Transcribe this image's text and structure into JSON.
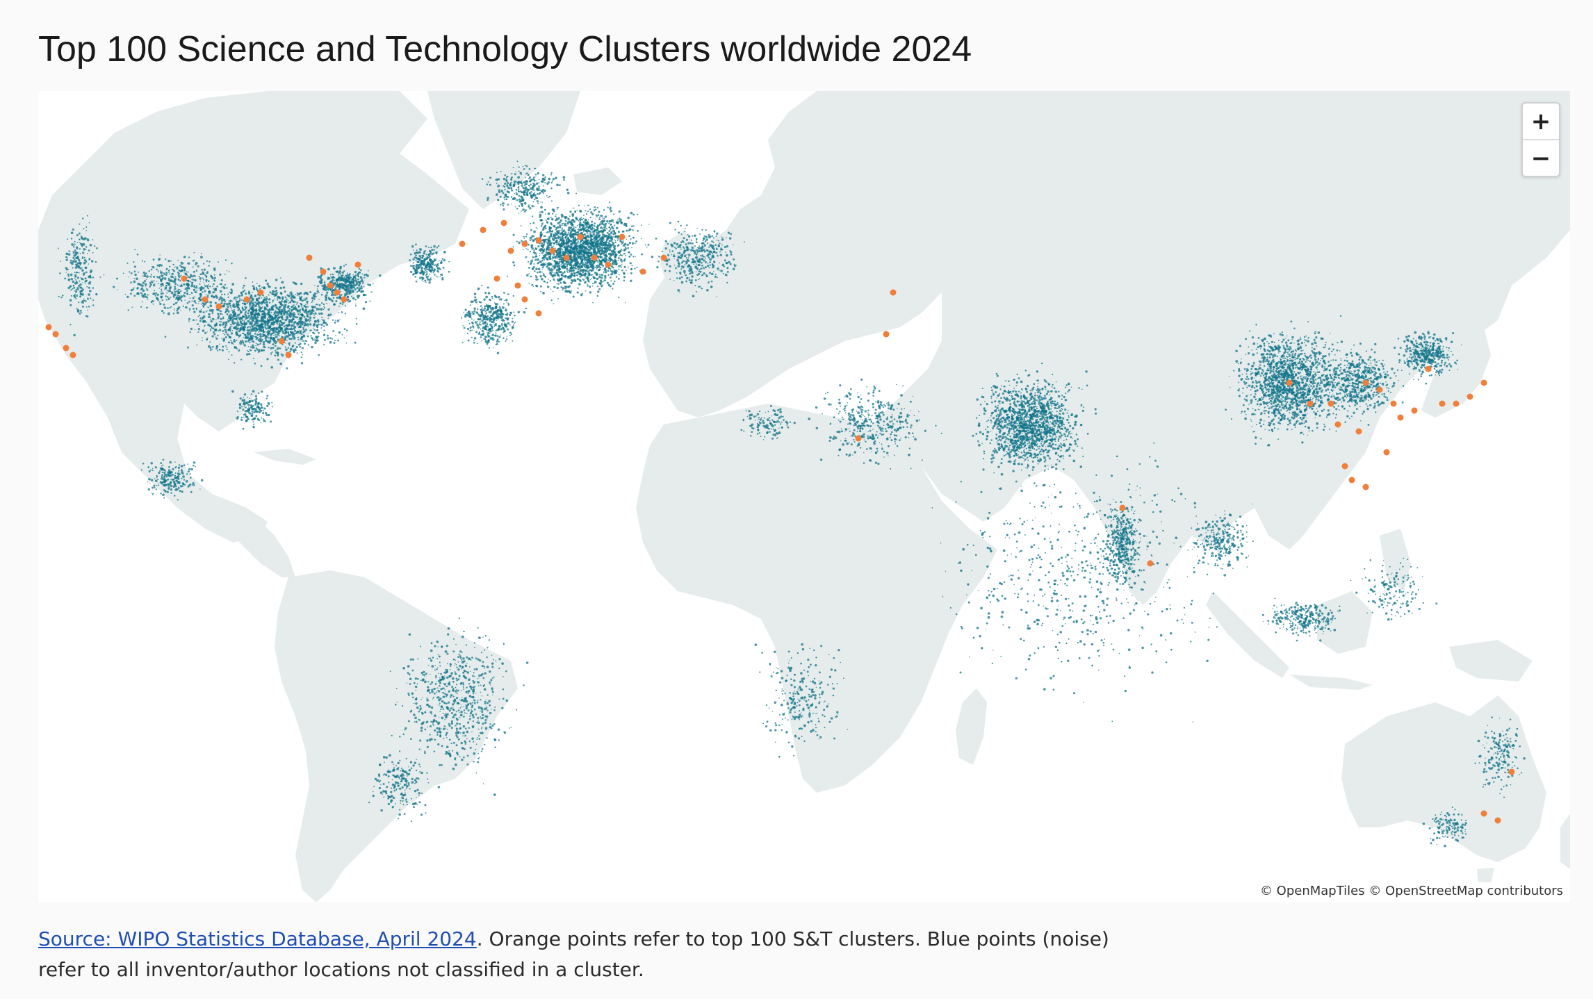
{
  "title": "Top 100 Science and Technology Clusters worldwide 2024",
  "map": {
    "zoom_in_label": "+",
    "zoom_out_label": "−",
    "attribution": "© OpenMapTiles © OpenStreetMap contributors",
    "colors": {
      "land": "#e6ecec",
      "water": "#ffffff",
      "noise_points": "#11748a",
      "cluster_points": "#f07f3c"
    },
    "layers": [
      "noise-points",
      "top-100-cluster-points",
      "basemap-land"
    ]
  },
  "caption": {
    "source_link": "Source: WIPO Statistics Database, April 2024",
    "text": ". Orange points refer to top 100 S&T clusters. Blue points (noise) refer to all inventor/author locations not classified in a cluster."
  }
}
